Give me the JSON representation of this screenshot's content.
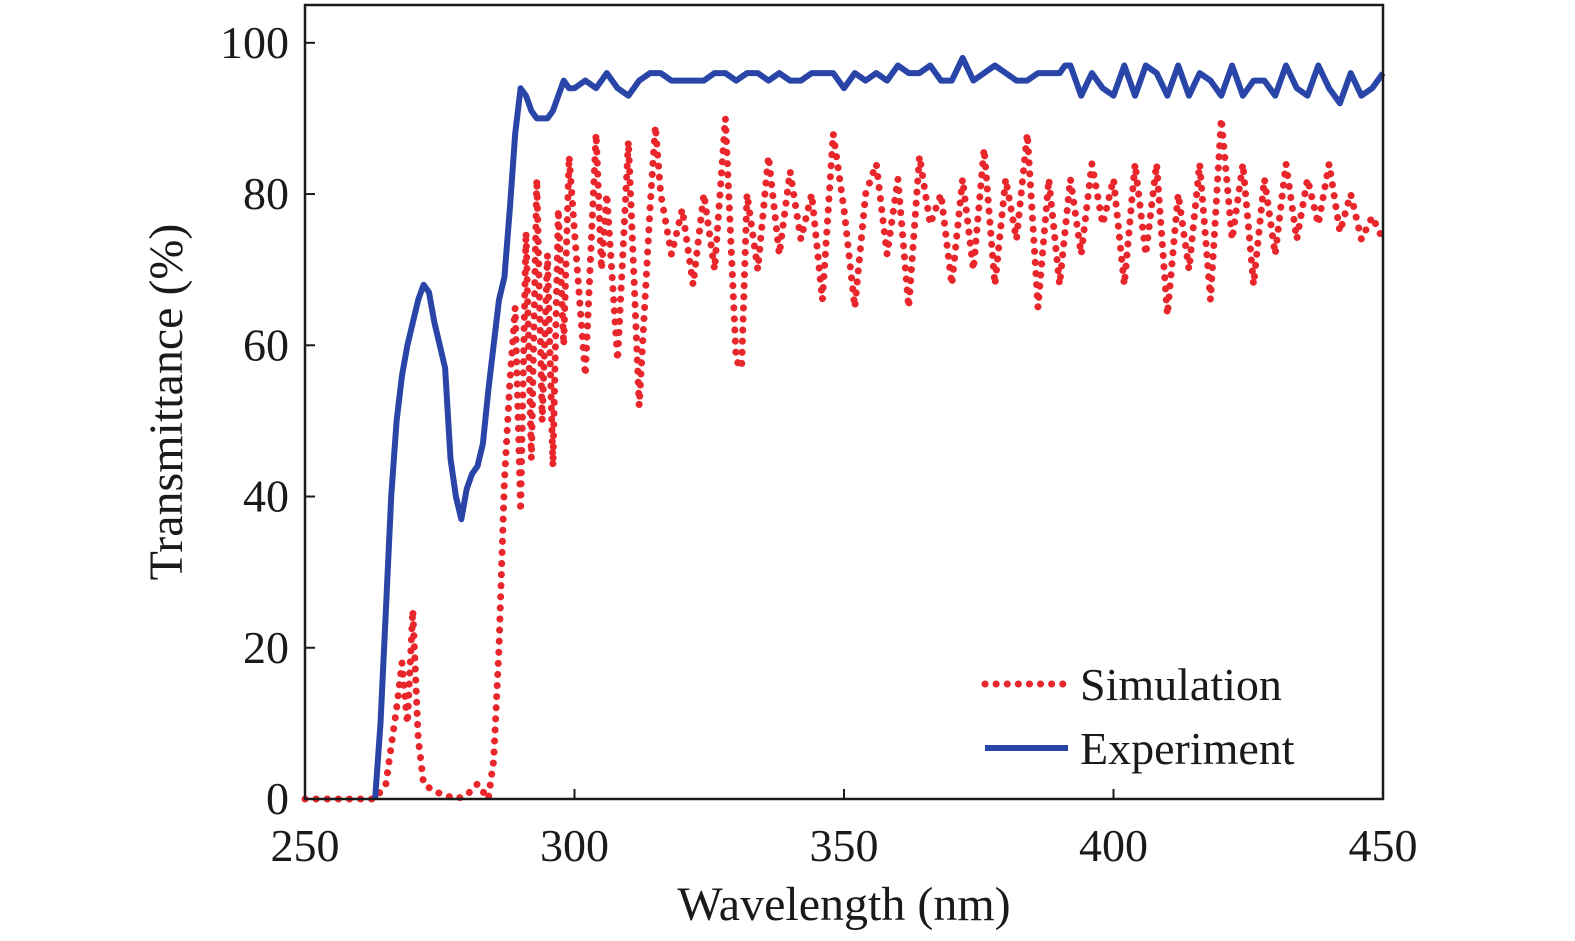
{
  "chart_data": {
    "type": "line",
    "xlabel": "Wavelength (nm)",
    "ylabel": "Transmittance (%)",
    "xlim": [
      250,
      450
    ],
    "ylim": [
      0,
      105
    ],
    "xticks": [
      250,
      300,
      350,
      400,
      450
    ],
    "yticks": [
      0,
      20,
      40,
      60,
      80,
      100
    ],
    "grid": false,
    "legend_position": "bottom-right",
    "series": [
      {
        "name": "Simulation",
        "style": "dotted",
        "color": "#e8262b",
        "x": [
          250,
          255,
          260,
          263,
          265,
          267,
          268,
          269,
          270,
          271,
          272,
          274,
          276,
          278,
          280,
          282,
          284,
          285,
          286,
          287,
          288,
          289,
          290,
          291,
          292,
          293,
          294,
          295,
          296,
          297,
          298,
          299,
          300,
          302,
          304,
          305,
          306,
          308,
          310,
          312,
          314,
          315,
          316,
          318,
          320,
          322,
          324,
          326,
          328,
          330,
          331,
          332,
          334,
          336,
          338,
          340,
          342,
          344,
          346,
          348,
          350,
          352,
          354,
          356,
          358,
          360,
          362,
          364,
          366,
          368,
          370,
          372,
          374,
          376,
          378,
          380,
          382,
          384,
          386,
          388,
          390,
          392,
          394,
          396,
          398,
          400,
          402,
          404,
          406,
          408,
          410,
          412,
          414,
          416,
          418,
          420,
          422,
          424,
          426,
          428,
          430,
          432,
          434,
          436,
          438,
          440,
          442,
          444,
          446,
          448,
          450
        ],
        "y": [
          0,
          0,
          0,
          0,
          2,
          12,
          18,
          10,
          25,
          8,
          2,
          1,
          0.5,
          0,
          0.5,
          2,
          0,
          5,
          20,
          42,
          55,
          65,
          38,
          75,
          45,
          82,
          50,
          72,
          44,
          78,
          60,
          85,
          75,
          56,
          88,
          70,
          80,
          58,
          87,
          52,
          78,
          89,
          80,
          72,
          78,
          68,
          80,
          70,
          90,
          58,
          57,
          80,
          70,
          85,
          72,
          83,
          74,
          80,
          66,
          88,
          78,
          65,
          80,
          84,
          72,
          82,
          65,
          85,
          76,
          80,
          68,
          82,
          70,
          86,
          68,
          82,
          74,
          88,
          65,
          82,
          68,
          82,
          72,
          84,
          76,
          82,
          68,
          84,
          72,
          84,
          64,
          80,
          70,
          84,
          66,
          90,
          74,
          84,
          68,
          82,
          72,
          84,
          74,
          82,
          76,
          84,
          75,
          80,
          74,
          77,
          74
        ]
      },
      {
        "name": "Experiment",
        "style": "solid",
        "color": "#2a45a8",
        "x": [
          263,
          264,
          265,
          266,
          267,
          268,
          269,
          270,
          271,
          272,
          273,
          274,
          275,
          276,
          277,
          278,
          279,
          280,
          281,
          282,
          283,
          284,
          285,
          286,
          287,
          288,
          289,
          290,
          291,
          292,
          293,
          294,
          295,
          296,
          297,
          298,
          299,
          300,
          302,
          304,
          306,
          308,
          310,
          312,
          314,
          316,
          318,
          320,
          322,
          324,
          326,
          328,
          330,
          332,
          334,
          336,
          338,
          340,
          342,
          344,
          346,
          348,
          350,
          352,
          354,
          356,
          358,
          360,
          362,
          364,
          366,
          368,
          370,
          372,
          374,
          376,
          378,
          380,
          382,
          384,
          386,
          388,
          390,
          391,
          392,
          394,
          396,
          398,
          400,
          402,
          404,
          406,
          408,
          410,
          412,
          414,
          416,
          418,
          420,
          422,
          424,
          426,
          428,
          430,
          432,
          434,
          436,
          438,
          440,
          442,
          444,
          446,
          448,
          450
        ],
        "y": [
          0,
          10,
          25,
          40,
          50,
          56,
          60,
          63,
          66,
          68,
          67,
          63,
          60,
          57,
          45,
          40,
          37,
          41,
          43,
          44,
          47,
          54,
          60,
          66,
          69,
          78,
          88,
          94,
          93,
          91,
          90,
          90,
          90,
          91,
          93,
          95,
          94,
          94,
          95,
          94,
          96,
          94,
          93,
          95,
          96,
          96,
          95,
          95,
          95,
          95,
          96,
          96,
          95,
          96,
          96,
          95,
          96,
          95,
          95,
          96,
          96,
          96,
          94,
          96,
          95,
          96,
          95,
          97,
          96,
          96,
          97,
          95,
          95,
          98,
          95,
          96,
          97,
          96,
          95,
          95,
          96,
          96,
          96,
          97,
          97,
          93,
          96,
          94,
          93,
          97,
          93,
          97,
          96,
          93,
          97,
          93,
          96,
          95,
          93,
          97,
          93,
          95,
          95,
          93,
          97,
          94,
          93,
          97,
          94,
          92,
          96,
          93,
          94,
          96
        ]
      }
    ]
  }
}
